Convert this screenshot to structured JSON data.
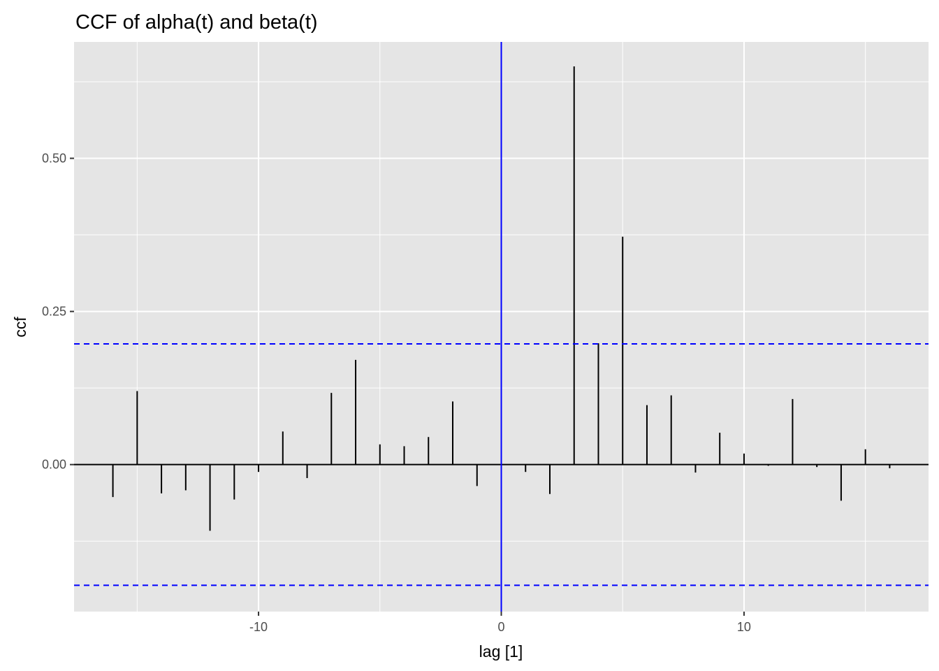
{
  "chart_data": {
    "type": "bar",
    "title": "CCF of alpha(t) and beta(t)",
    "xlabel": "lag [1]",
    "ylabel": "ccf",
    "xlim": [
      -17.6,
      17.6
    ],
    "ylim": [
      -0.24,
      0.69
    ],
    "x_ticks": [
      -10,
      0,
      10
    ],
    "x_tick_labels": [
      "-10",
      "0",
      "10"
    ],
    "y_ticks": [
      0.0,
      0.25,
      0.5
    ],
    "y_tick_labels": [
      "0.00",
      "0.25",
      "0.50"
    ],
    "grid": true,
    "x": [
      -16,
      -15,
      -14,
      -13,
      -12,
      -11,
      -10,
      -9,
      -8,
      -7,
      -6,
      -5,
      -4,
      -3,
      -2,
      -1,
      0,
      1,
      2,
      3,
      4,
      5,
      6,
      7,
      8,
      9,
      10,
      11,
      12,
      13,
      14,
      15,
      16
    ],
    "values": [
      -0.053,
      0.12,
      -0.047,
      -0.042,
      -0.108,
      -0.057,
      -0.012,
      0.054,
      -0.022,
      0.117,
      0.171,
      0.033,
      0.03,
      0.045,
      0.103,
      -0.035,
      -0.045,
      -0.012,
      -0.048,
      0.65,
      0.198,
      0.372,
      0.097,
      0.113,
      -0.013,
      0.052,
      0.018,
      -0.002,
      0.107,
      -0.004,
      -0.059,
      0.025,
      -0.006
    ],
    "confidence_bound": 0.197,
    "bar_color": "#000000",
    "bound_color": "#0000ff",
    "zero_lag_line_color": "#0000ff",
    "panel_background": "#e5e5e5",
    "grid_color": "#ffffff"
  }
}
